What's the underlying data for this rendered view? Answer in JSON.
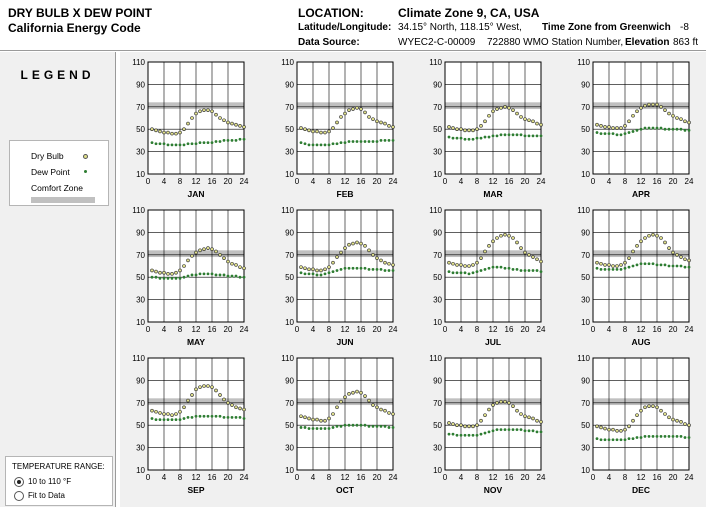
{
  "header": {
    "title_line1": "DRY BULB  X  DEW POINT",
    "title_line2": "California Energy Code",
    "location_label": "LOCATION:",
    "location_value": "Climate Zone 9, CA, USA",
    "latlon_label": "Latitude/Longitude:",
    "latlon_value": "34.15° North, 118.15° West,",
    "timezone_label": "Time Zone from Greenwich",
    "timezone_value": "-8",
    "source_label": "Data Source:",
    "source_value": "WYEC2-C-00009",
    "station_value": "722880 WMO Station Number,",
    "elevation_label": "Elevation",
    "elevation_value": "863 ft"
  },
  "legend": {
    "title": "LEGEND",
    "dry_bulb": "Dry Bulb",
    "dew_point": "Dew Point",
    "comfort_zone": "Comfort Zone",
    "dry_bulb_color": "#e0e08a",
    "dew_point_color": "#2e7d32",
    "comfort_color": "#c0c0c0"
  },
  "temperature_range": {
    "title": "TEMPERATURE RANGE:",
    "option_fixed": "10 to 110 °F",
    "option_fit": "Fit to Data",
    "selected": "fixed"
  },
  "chart_data": {
    "type": "scatter",
    "x_ticks": [
      "0",
      "4",
      "8",
      "12",
      "16",
      "20",
      "24"
    ],
    "xlim": [
      0,
      24
    ],
    "y_ticks": [
      "10",
      "30",
      "50",
      "70",
      "90",
      "110"
    ],
    "ylim": [
      10,
      110
    ],
    "grid": true,
    "hours": [
      1,
      2,
      3,
      4,
      5,
      6,
      7,
      8,
      9,
      10,
      11,
      12,
      13,
      14,
      15,
      16,
      17,
      18,
      19,
      20,
      21,
      22,
      23,
      24
    ],
    "months": [
      {
        "name": "JAN",
        "comfort": [
          68,
          74
        ],
        "dry_bulb": [
          50,
          49,
          48,
          47,
          47,
          46,
          46,
          47,
          50,
          55,
          60,
          64,
          66,
          67,
          67,
          66,
          63,
          60,
          58,
          56,
          55,
          54,
          53,
          52
        ],
        "dew_point": [
          38,
          37,
          37,
          37,
          36,
          36,
          36,
          36,
          36,
          37,
          37,
          37,
          38,
          38,
          38,
          38,
          39,
          39,
          40,
          40,
          40,
          40,
          41,
          41
        ]
      },
      {
        "name": "FEB",
        "comfort": [
          68,
          74
        ],
        "dry_bulb": [
          51,
          50,
          49,
          48,
          48,
          47,
          47,
          48,
          51,
          56,
          61,
          64,
          67,
          68,
          69,
          68,
          65,
          61,
          59,
          57,
          56,
          55,
          53,
          52
        ],
        "dew_point": [
          38,
          37,
          36,
          36,
          36,
          36,
          36,
          36,
          37,
          37,
          38,
          38,
          39,
          39,
          39,
          39,
          39,
          39,
          39,
          39,
          40,
          40,
          40,
          40
        ]
      },
      {
        "name": "MAR",
        "comfort": [
          68,
          74
        ],
        "dry_bulb": [
          52,
          51,
          50,
          50,
          49,
          49,
          49,
          50,
          53,
          57,
          62,
          66,
          68,
          69,
          70,
          69,
          67,
          64,
          61,
          59,
          58,
          57,
          55,
          54
        ],
        "dew_point": [
          43,
          42,
          42,
          42,
          41,
          41,
          41,
          42,
          42,
          43,
          43,
          44,
          44,
          45,
          45,
          45,
          45,
          45,
          45,
          44,
          44,
          44,
          44,
          44
        ]
      },
      {
        "name": "APR",
        "comfort": [
          68,
          74
        ],
        "dry_bulb": [
          54,
          53,
          52,
          52,
          51,
          51,
          51,
          53,
          57,
          62,
          66,
          69,
          71,
          72,
          72,
          72,
          70,
          67,
          64,
          62,
          60,
          59,
          57,
          56
        ],
        "dew_point": [
          47,
          46,
          46,
          46,
          46,
          45,
          45,
          46,
          47,
          48,
          49,
          50,
          51,
          51,
          51,
          51,
          51,
          50,
          50,
          50,
          50,
          50,
          49,
          49
        ]
      },
      {
        "name": "MAY",
        "comfort": [
          68,
          74
        ],
        "dry_bulb": [
          56,
          55,
          54,
          54,
          53,
          53,
          54,
          56,
          60,
          65,
          69,
          72,
          74,
          75,
          76,
          75,
          73,
          70,
          67,
          64,
          62,
          61,
          59,
          58
        ],
        "dew_point": [
          50,
          50,
          49,
          49,
          49,
          49,
          49,
          49,
          50,
          51,
          52,
          52,
          53,
          53,
          53,
          53,
          52,
          52,
          52,
          51,
          51,
          51,
          50,
          50
        ]
      },
      {
        "name": "JUN",
        "comfort": [
          68,
          74
        ],
        "dry_bulb": [
          59,
          58,
          57,
          57,
          56,
          56,
          57,
          59,
          63,
          68,
          72,
          76,
          79,
          80,
          81,
          80,
          78,
          74,
          70,
          67,
          65,
          63,
          62,
          61
        ],
        "dew_point": [
          54,
          53,
          53,
          53,
          52,
          52,
          53,
          54,
          55,
          56,
          57,
          58,
          58,
          58,
          58,
          58,
          58,
          57,
          57,
          57,
          57,
          56,
          56,
          56
        ]
      },
      {
        "name": "JUL",
        "comfort": [
          68,
          74
        ],
        "dry_bulb": [
          63,
          62,
          61,
          61,
          60,
          60,
          61,
          63,
          67,
          73,
          78,
          82,
          85,
          87,
          88,
          87,
          85,
          81,
          76,
          72,
          70,
          68,
          66,
          64
        ],
        "dew_point": [
          55,
          54,
          54,
          54,
          54,
          53,
          54,
          55,
          56,
          57,
          58,
          59,
          59,
          59,
          58,
          58,
          57,
          57,
          56,
          56,
          56,
          56,
          56,
          55
        ]
      },
      {
        "name": "AUG",
        "comfort": [
          68,
          74
        ],
        "dry_bulb": [
          63,
          62,
          61,
          61,
          60,
          60,
          61,
          63,
          67,
          73,
          78,
          82,
          85,
          87,
          88,
          87,
          85,
          81,
          76,
          72,
          70,
          68,
          66,
          65
        ],
        "dew_point": [
          58,
          57,
          57,
          57,
          57,
          57,
          57,
          58,
          59,
          60,
          61,
          62,
          62,
          62,
          62,
          61,
          61,
          61,
          60,
          60,
          60,
          60,
          59,
          59
        ]
      },
      {
        "name": "SEP",
        "comfort": [
          68,
          74
        ],
        "dry_bulb": [
          63,
          62,
          61,
          60,
          60,
          59,
          60,
          62,
          66,
          72,
          77,
          82,
          84,
          85,
          85,
          84,
          81,
          77,
          73,
          70,
          68,
          66,
          65,
          64
        ],
        "dew_point": [
          56,
          55,
          55,
          55,
          55,
          55,
          55,
          55,
          56,
          57,
          57,
          58,
          58,
          58,
          58,
          58,
          58,
          58,
          57,
          57,
          57,
          57,
          57,
          56
        ]
      },
      {
        "name": "OCT",
        "comfort": [
          68,
          74
        ],
        "dry_bulb": [
          58,
          57,
          56,
          55,
          55,
          54,
          54,
          56,
          60,
          66,
          71,
          75,
          78,
          79,
          80,
          79,
          76,
          72,
          68,
          66,
          64,
          63,
          61,
          60
        ],
        "dew_point": [
          48,
          48,
          47,
          47,
          47,
          47,
          47,
          47,
          48,
          49,
          49,
          50,
          50,
          50,
          50,
          50,
          50,
          49,
          49,
          49,
          49,
          49,
          48,
          48
        ]
      },
      {
        "name": "NOV",
        "comfort": [
          68,
          74
        ],
        "dry_bulb": [
          52,
          51,
          50,
          50,
          49,
          49,
          49,
          50,
          54,
          59,
          64,
          68,
          70,
          71,
          71,
          70,
          67,
          63,
          60,
          58,
          57,
          56,
          54,
          53
        ],
        "dew_point": [
          42,
          42,
          41,
          41,
          41,
          41,
          41,
          41,
          42,
          43,
          44,
          45,
          46,
          46,
          46,
          46,
          46,
          46,
          46,
          45,
          45,
          45,
          44,
          44
        ]
      },
      {
        "name": "DEC",
        "comfort": [
          68,
          74
        ],
        "dry_bulb": [
          49,
          48,
          47,
          46,
          46,
          45,
          45,
          46,
          49,
          54,
          59,
          63,
          66,
          67,
          67,
          66,
          63,
          60,
          57,
          55,
          54,
          53,
          51,
          50
        ],
        "dew_point": [
          38,
          37,
          37,
          37,
          37,
          37,
          37,
          37,
          38,
          38,
          39,
          39,
          40,
          40,
          40,
          40,
          40,
          40,
          40,
          40,
          40,
          40,
          39,
          39
        ]
      }
    ]
  }
}
